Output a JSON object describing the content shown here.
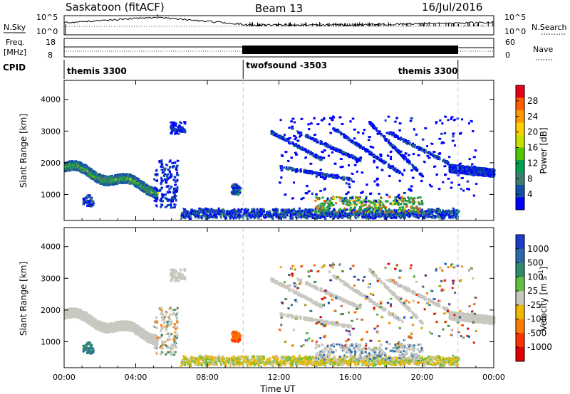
{
  "header": {
    "title": "Saskatoon (fitACF)",
    "beam": "Beam 13",
    "date": "16/Jul/2016"
  },
  "top_panels": {
    "nsky_label": "N.Sky",
    "nsky_ticks": [
      "10^5",
      "10^0"
    ],
    "nsearch_label": "N.Search",
    "nsearch_ticks": [
      "10^5",
      "10^0"
    ],
    "freq_label_line1": "Freq.",
    "freq_label_line2": "[MHz]",
    "freq_ticks": [
      "18",
      "8"
    ],
    "nave_label": "Nave",
    "nave_ticks": [
      "60",
      "0"
    ],
    "cpid_label": "CPID",
    "cpid_segments": [
      {
        "label": "themis 3300",
        "start": 0,
        "end": 10
      },
      {
        "label": "twofsound -3503",
        "start": 10,
        "end": 22
      },
      {
        "label": "themis 3300",
        "start": 22,
        "end": 24
      }
    ]
  },
  "chart_data": [
    {
      "type": "heatmap",
      "panel": "power",
      "ylabel": "Slant Range [km]",
      "xlabel": "",
      "xlim": [
        0,
        24
      ],
      "ylim": [
        180,
        4600
      ],
      "yticks": [
        1000,
        2000,
        3000,
        4000
      ],
      "ytick_labels": [
        "1000",
        "2000",
        "3000",
        "4000"
      ],
      "colorbar": {
        "label": "Power [dB]",
        "ticks": [
          "28",
          "24",
          "20",
          "16",
          "12",
          "8",
          "4"
        ],
        "colors": [
          "#e8001a",
          "#ff5a00",
          "#ff9a00",
          "#ffd000",
          "#c8e000",
          "#4ec800",
          "#00a050",
          "#3c7e6e",
          "#1050a8",
          "#0000ff"
        ]
      }
    },
    {
      "type": "heatmap",
      "panel": "velocity",
      "ylabel": "Slant Range [km]",
      "xlabel": "Time UT",
      "xlim": [
        0,
        24
      ],
      "ylim": [
        180,
        4600
      ],
      "xticks": [
        0,
        4,
        8,
        12,
        16,
        20,
        24
      ],
      "xtick_labels": [
        "00:00",
        "04:00",
        "08:00",
        "12:00",
        "16:00",
        "20:00",
        "00:00"
      ],
      "yticks": [
        1000,
        2000,
        3000,
        4000
      ],
      "ytick_labels": [
        "1000",
        "2000",
        "3000",
        "4000"
      ],
      "colorbar": {
        "label": "Velocity [m s",
        "label_sup": "-1",
        "label_tail": "]",
        "ticks": [
          "1000",
          "500",
          "100",
          "25",
          "-25",
          "-100",
          "-500",
          "-1000"
        ],
        "colors": [
          "#1a3cc8",
          "#2a6aa8",
          "#2e8a6a",
          "#60c040",
          "#c8c8c0",
          "#f0b800",
          "#ff7a00",
          "#ff3000",
          "#e00000"
        ]
      }
    }
  ]
}
